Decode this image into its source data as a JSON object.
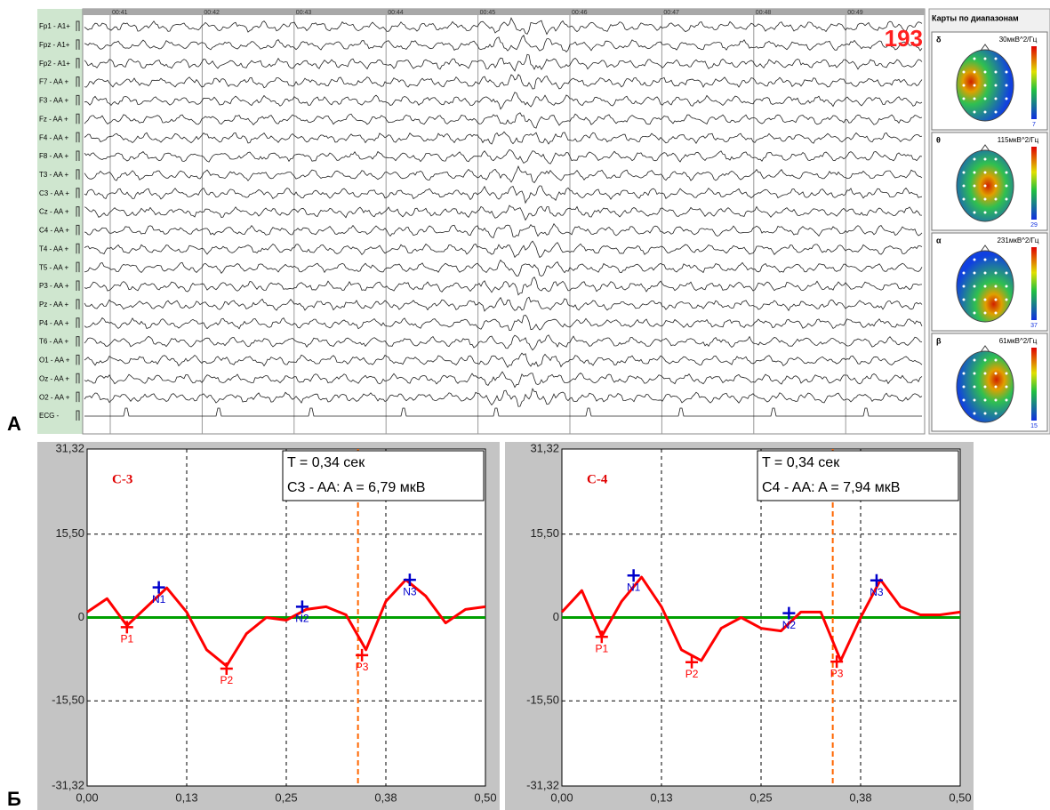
{
  "panel_a": {
    "letter": "А",
    "channels": [
      "Fp1 - A1+",
      "Fpz - A1+",
      "Fp2 - A1+",
      "F7 - AA +",
      "F3 - AA +",
      "Fz - AA +",
      "F4 - AA +",
      "F8 - AA +",
      "T3 - AA +",
      "C3 - AA +",
      "Cz - AA +",
      "C4 - AA +",
      "T4 - AA +",
      "T5 - AA +",
      "P3 - AA +",
      "Pz - AA +",
      "P4 - AA +",
      "T6 - AA +",
      "O1 - AA +",
      "Oz - AA +",
      "O2 - AA +",
      "ECG -"
    ],
    "time_labels": [
      "00:41",
      "00:42",
      "00:43",
      "00:44",
      "00:45",
      "00:46",
      "00:47",
      "00:48",
      "00:49"
    ],
    "epoch_number": "193",
    "maps": {
      "title": "Карты по диапазонам",
      "bands": [
        {
          "symbol": "δ",
          "power": "30мкВ^2/Гц",
          "scale_min": "7"
        },
        {
          "symbol": "θ",
          "power": "115мкВ^2/Гц",
          "scale_min": "29"
        },
        {
          "symbol": "α",
          "power": "231мкВ^2/Гц",
          "scale_min": "37"
        },
        {
          "symbol": "β",
          "power": "61мкВ^2/Гц",
          "scale_min": "15"
        }
      ]
    }
  },
  "panel_b": {
    "letter": "Б"
  },
  "chart_data": [
    {
      "type": "line",
      "title": "C-3",
      "cursor_label": "T = 0,34 сек",
      "amplitude_label": "C3 - AA: A = 6,79 мкВ",
      "cursor_x": 0.34,
      "color": "#ff0000",
      "zero_line_color": "#00a000",
      "cursor_color": "#ff6600",
      "grid": true,
      "x": [
        0,
        0.025,
        0.05,
        0.075,
        0.1,
        0.125,
        0.15,
        0.175,
        0.2,
        0.225,
        0.25,
        0.275,
        0.3,
        0.325,
        0.35,
        0.375,
        0.4,
        0.425,
        0.45,
        0.475,
        0.5
      ],
      "values": [
        1,
        3.5,
        -1.5,
        2,
        5.5,
        1,
        -6,
        -9,
        -3,
        0,
        -0.5,
        1.5,
        2,
        0.5,
        -6,
        3,
        7,
        4,
        -1,
        1.5,
        2
      ],
      "peaks": [
        {
          "label": "P1",
          "x": 0.05,
          "y": -1.8,
          "color": "#ff0000"
        },
        {
          "label": "N1",
          "x": 0.09,
          "y": 5.6,
          "color": "#0000cc"
        },
        {
          "label": "P2",
          "x": 0.175,
          "y": -9.5,
          "color": "#ff0000"
        },
        {
          "label": "N2",
          "x": 0.27,
          "y": 2,
          "color": "#0000cc"
        },
        {
          "label": "P3",
          "x": 0.345,
          "y": -7,
          "color": "#ff0000"
        },
        {
          "label": "N3",
          "x": 0.405,
          "y": 7,
          "color": "#0000cc"
        }
      ],
      "xlim": [
        0,
        0.5
      ],
      "ylim": [
        -31.32,
        31.32
      ],
      "xticks": [
        {
          "value": 0,
          "label": "0,00"
        },
        {
          "value": 0.125,
          "label": "0,13"
        },
        {
          "value": 0.25,
          "label": "0,25"
        },
        {
          "value": 0.375,
          "label": "0,38"
        },
        {
          "value": 0.5,
          "label": "0,50"
        }
      ],
      "yticks": [
        {
          "value": -31.32,
          "label": "-31,32"
        },
        {
          "value": -15.5,
          "label": "-15,50"
        },
        0,
        {
          "value": 15.5,
          "label": "15,50"
        },
        {
          "value": 31.32,
          "label": "31,32"
        }
      ]
    },
    {
      "type": "line",
      "title": "C-4",
      "cursor_label": "T = 0,34 сек",
      "amplitude_label": "C4 - AA: A = 7,94 мкВ",
      "cursor_x": 0.34,
      "color": "#ff0000",
      "zero_line_color": "#00a000",
      "cursor_color": "#ff6600",
      "grid": true,
      "x": [
        0,
        0.025,
        0.05,
        0.075,
        0.1,
        0.125,
        0.15,
        0.175,
        0.2,
        0.225,
        0.25,
        0.275,
        0.3,
        0.325,
        0.35,
        0.375,
        0.4,
        0.425,
        0.45,
        0.475,
        0.5
      ],
      "values": [
        1,
        5,
        -3.5,
        3,
        7.5,
        2,
        -6,
        -8,
        -2,
        0,
        -2,
        -2.5,
        1,
        1,
        -8,
        0,
        7,
        2,
        0.5,
        0.5,
        1
      ],
      "peaks": [
        {
          "label": "P1",
          "x": 0.05,
          "y": -3.6,
          "color": "#ff0000"
        },
        {
          "label": "N1",
          "x": 0.09,
          "y": 7.8,
          "color": "#0000cc"
        },
        {
          "label": "P2",
          "x": 0.163,
          "y": -8.3,
          "color": "#ff0000"
        },
        {
          "label": "N2",
          "x": 0.285,
          "y": 0.8,
          "color": "#0000cc"
        },
        {
          "label": "P3",
          "x": 0.345,
          "y": -8.2,
          "color": "#ff0000"
        },
        {
          "label": "N3",
          "x": 0.395,
          "y": 6.9,
          "color": "#0000cc"
        }
      ],
      "xlim": [
        0,
        0.5
      ],
      "ylim": [
        -31.32,
        31.32
      ],
      "xticks": [
        {
          "value": 0,
          "label": "0,00"
        },
        {
          "value": 0.125,
          "label": "0,13"
        },
        {
          "value": 0.25,
          "label": "0,25"
        },
        {
          "value": 0.375,
          "label": "0,38"
        },
        {
          "value": 0.5,
          "label": "0,50"
        }
      ],
      "yticks": [
        {
          "value": -31.32,
          "label": "-31,32"
        },
        {
          "value": -15.5,
          "label": "-15,50"
        },
        0,
        {
          "value": 15.5,
          "label": "15,50"
        },
        {
          "value": 31.32,
          "label": "31,32"
        }
      ]
    }
  ]
}
